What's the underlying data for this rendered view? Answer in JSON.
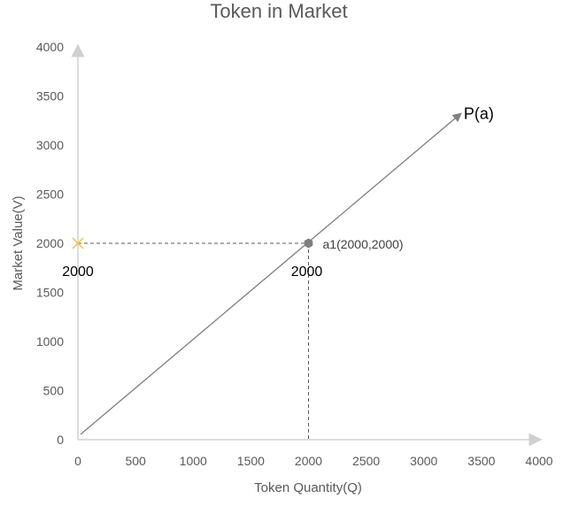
{
  "chart_data": {
    "type": "line",
    "title": "Token in Market",
    "xlabel": "Token Quantity(Q)",
    "ylabel": "Market Value(V)",
    "xlim": [
      0,
      4000
    ],
    "ylim": [
      0,
      4000
    ],
    "x_ticks": [
      "0",
      "500",
      "1000",
      "1500",
      "2000",
      "2500",
      "3000",
      "3500",
      "4000"
    ],
    "y_ticks": [
      "0",
      "500",
      "1000",
      "1500",
      "2000",
      "2500",
      "3000",
      "3500",
      "4000"
    ],
    "grid": false,
    "series": [
      {
        "name": "P(a)",
        "x": [
          0,
          3300
        ],
        "y": [
          0,
          3300
        ],
        "color": "#7f7f7f"
      }
    ],
    "points": [
      {
        "label": "a1(2000,2000)",
        "x": 2000,
        "y": 2000,
        "color": "#7f7f7f"
      }
    ],
    "y_axis_marker": {
      "x": 0,
      "y": 2000,
      "color": "#f2c75c"
    },
    "annotations": {
      "y_value": "2000",
      "x_value": "2000"
    }
  }
}
